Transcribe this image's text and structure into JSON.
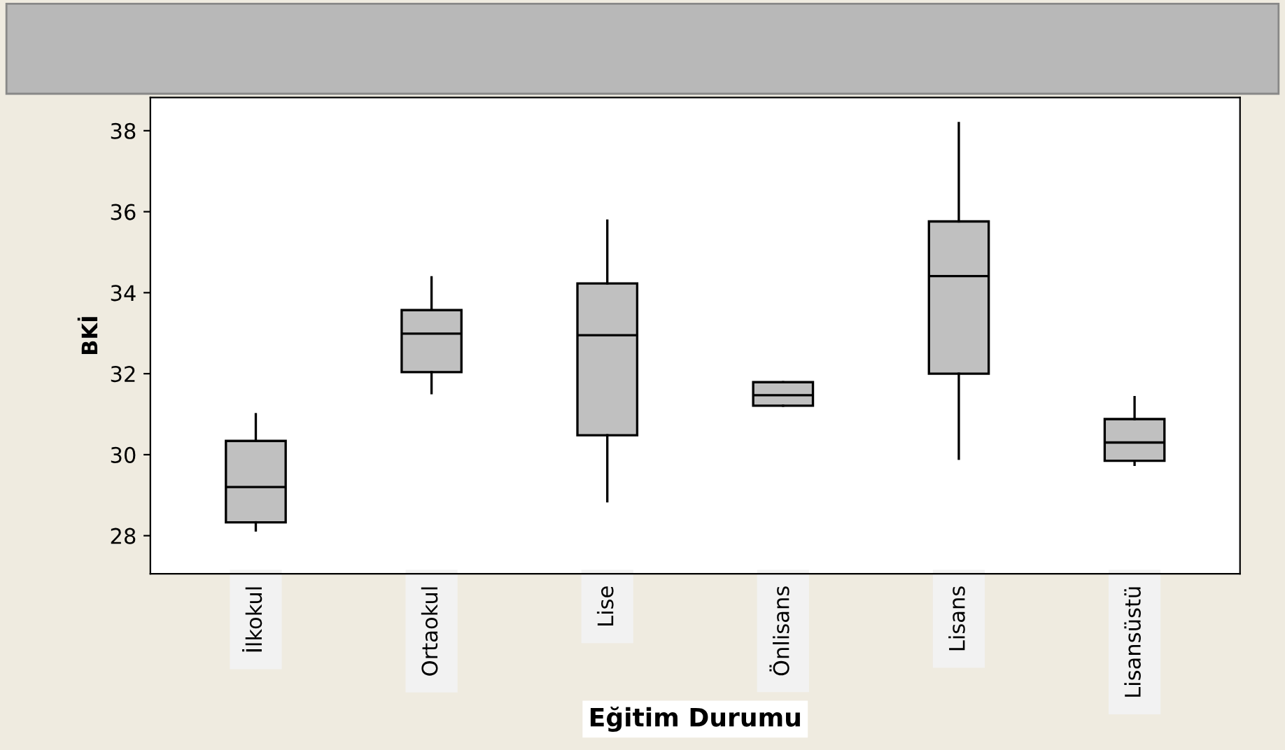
{
  "chart_data": {
    "type": "box",
    "xlabel": "Eğitim Durumu",
    "ylabel": "BKİ",
    "categories": [
      "İlkokul",
      "Ortaokul",
      "Lise",
      "Önlisans",
      "Lisans",
      "Lisansüstü"
    ],
    "color": "#c0c0c0",
    "boxes": [
      {
        "low": 28.13,
        "q1": 28.33,
        "median": 29.2,
        "q3": 30.34,
        "high": 31.0
      },
      {
        "low": 31.52,
        "q1": 32.04,
        "median": 32.99,
        "q3": 33.57,
        "high": 34.38
      },
      {
        "low": 28.85,
        "q1": 30.48,
        "median": 32.95,
        "q3": 34.23,
        "high": 35.78
      },
      {
        "low": 31.21,
        "q1": 31.21,
        "median": 31.47,
        "q3": 31.79,
        "high": 31.79
      },
      {
        "low": 29.9,
        "q1": 32.0,
        "median": 34.41,
        "q3": 35.76,
        "high": 38.19
      },
      {
        "low": 29.75,
        "q1": 29.85,
        "median": 30.3,
        "q3": 30.88,
        "high": 31.42
      }
    ],
    "ylim": [
      27.06,
      38.82
    ],
    "yticks": [
      28,
      30,
      32,
      34,
      36,
      38
    ],
    "grid": false
  }
}
